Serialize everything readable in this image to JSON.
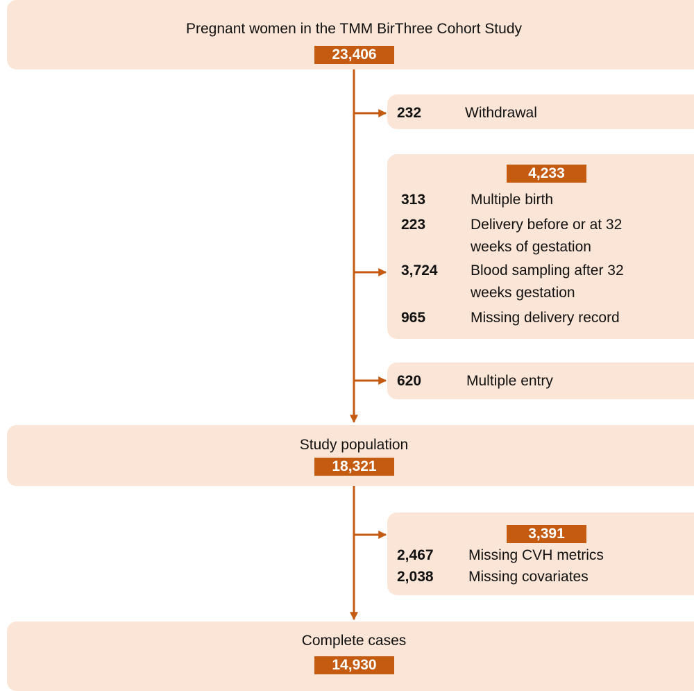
{
  "steps": [
    {
      "label": "Pregnant women in the TMM BirThree Cohort Study",
      "count": "23,406"
    },
    {
      "label": "Study population",
      "count": "18,321"
    },
    {
      "label": "Complete cases",
      "count": "14,930"
    }
  ],
  "exclusions": [
    {
      "items": [
        {
          "count": "232",
          "lines": [
            "Withdrawal"
          ]
        }
      ]
    },
    {
      "count": "4,233",
      "items": [
        {
          "count": "313",
          "lines": [
            "Multiple birth"
          ]
        },
        {
          "count": "223",
          "lines": [
            "Delivery before or at 32",
            "weeks of gestation"
          ]
        },
        {
          "count": "3,724",
          "lines": [
            "Blood sampling after 32",
            "weeks gestation"
          ]
        },
        {
          "count": "965",
          "lines": [
            "Missing delivery record"
          ]
        }
      ]
    },
    {
      "items": [
        {
          "count": "620",
          "lines": [
            "Multiple entry"
          ]
        }
      ]
    },
    {
      "count": "3,391",
      "items": [
        {
          "count": "2,467",
          "lines": [
            "Missing CVH metrics"
          ]
        },
        {
          "count": "2,038",
          "lines": [
            "Missing covariates"
          ]
        }
      ]
    }
  ]
}
